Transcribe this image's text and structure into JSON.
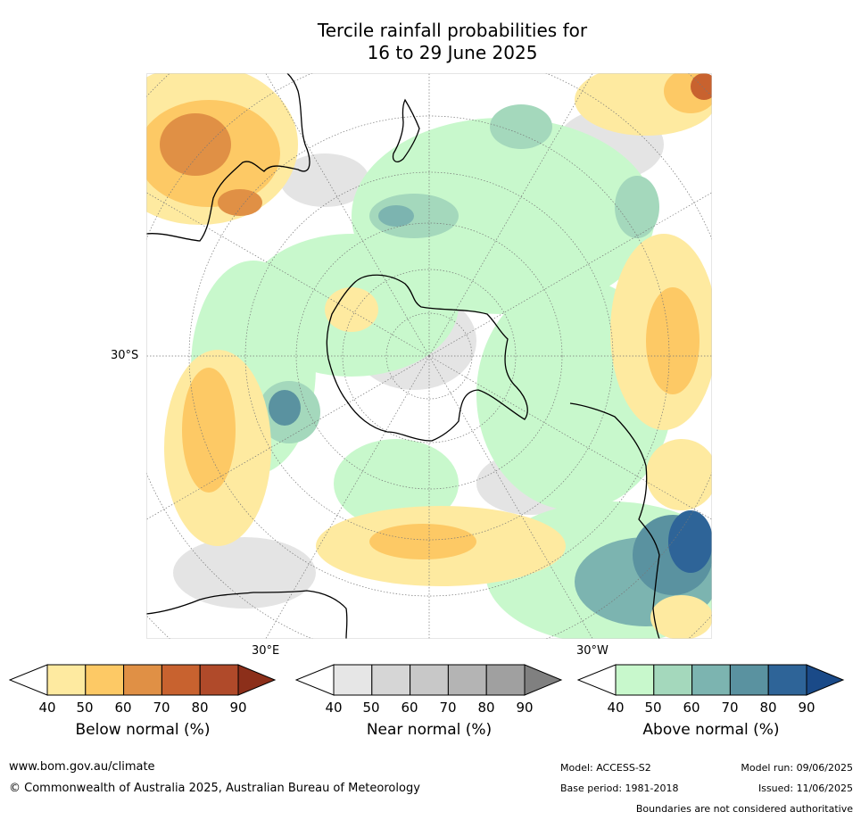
{
  "title": {
    "line1": "Tercile rainfall probabilities for",
    "line2": "16 to 29 June 2025"
  },
  "map": {
    "lat_label": "30°S",
    "lon_label_east": "30°E",
    "lon_label_west": "30°W"
  },
  "legends": [
    {
      "title": "Below normal (%)",
      "ticks": [
        "40",
        "50",
        "60",
        "70",
        "80",
        "90"
      ],
      "colors": [
        "#ffffff",
        "#feeaa0",
        "#fdc965",
        "#e09045",
        "#c8622f",
        "#b04a2a",
        "#8c2f1a"
      ]
    },
    {
      "title": "Near normal (%)",
      "ticks": [
        "40",
        "50",
        "60",
        "70",
        "80",
        "90"
      ],
      "colors": [
        "#ffffff",
        "#e6e6e6",
        "#d6d6d6",
        "#c8c8c8",
        "#b4b4b4",
        "#a0a0a0",
        "#808080"
      ]
    },
    {
      "title": "Above normal (%)",
      "ticks": [
        "40",
        "50",
        "60",
        "70",
        "80",
        "90"
      ],
      "colors": [
        "#ffffff",
        "#c8f8cc",
        "#a4d8bc",
        "#7cb4b0",
        "#5a92a0",
        "#2e6498",
        "#1a4a88"
      ]
    }
  ],
  "footer": {
    "website": "www.bom.gov.au/climate",
    "copyright": "© Commonwealth of Australia 2025, Australian Bureau of Meteorology",
    "model": "Model: ACCESS-S2",
    "model_run": "Model run: 09/06/2025",
    "base_period": "Base period: 1981-2018",
    "issued": "Issued: 11/06/2025",
    "disclaimer": "Boundaries are not considered authoritative"
  }
}
